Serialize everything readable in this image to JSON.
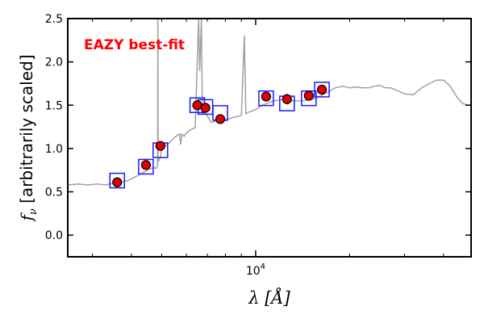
{
  "chart_data": {
    "type": "scatter",
    "title": "",
    "xlabel": "λ [Å]",
    "ylabel_symbol": "f",
    "ylabel_sub": "ν",
    "ylabel_text": " [arbitrarily scaled]",
    "xscale": "log",
    "xlim": [
      2500,
      49000
    ],
    "ylim": [
      -0.25,
      2.5
    ],
    "yticks": [
      "0.0",
      "0.5",
      "1.0",
      "1.5",
      "2.0",
      "2.5"
    ],
    "xtick_major_labels": [
      {
        "base": "10",
        "exp": "4"
      }
    ],
    "annotation": {
      "text": "EAZY best-fit",
      "color": "#ff0000"
    },
    "colors": {
      "template": "#a0a0a0",
      "model_box": "#1a1aff",
      "point_fill": "#e00000",
      "point_edge": "#000000"
    },
    "template_spectrum": [
      [
        2500,
        0.58
      ],
      [
        2700,
        0.59
      ],
      [
        2900,
        0.58
      ],
      [
        3100,
        0.59
      ],
      [
        3300,
        0.58
      ],
      [
        3500,
        0.6
      ],
      [
        3700,
        0.61
      ],
      [
        3900,
        0.63
      ],
      [
        4100,
        0.67
      ],
      [
        4300,
        0.71
      ],
      [
        4500,
        0.75
      ],
      [
        4700,
        0.78
      ],
      [
        4800,
        0.77
      ],
      [
        4850,
        0.8
      ],
      [
        4861,
        2.5
      ],
      [
        4870,
        0.85
      ],
      [
        4959,
        0.9
      ],
      [
        5007,
        1.05
      ],
      [
        5100,
        1.02
      ],
      [
        5300,
        1.07
      ],
      [
        5500,
        1.13
      ],
      [
        5700,
        1.17
      ],
      [
        5750,
        1.05
      ],
      [
        5800,
        1.17
      ],
      [
        5900,
        1.14
      ],
      [
        6000,
        1.18
      ],
      [
        6200,
        1.22
      ],
      [
        6400,
        1.24
      ],
      [
        6563,
        2.5
      ],
      [
        6620,
        1.9
      ],
      [
        6700,
        2.5
      ],
      [
        6750,
        1.4
      ],
      [
        6900,
        1.42
      ],
      [
        7200,
        1.3
      ],
      [
        7500,
        1.32
      ],
      [
        8000,
        1.33
      ],
      [
        8500,
        1.36
      ],
      [
        9000,
        1.38
      ],
      [
        9200,
        2.3
      ],
      [
        9300,
        1.4
      ],
      [
        9500,
        1.42
      ],
      [
        10000,
        1.45
      ],
      [
        10500,
        1.5
      ],
      [
        11000,
        1.53
      ],
      [
        11500,
        1.55
      ],
      [
        12000,
        1.56
      ],
      [
        12500,
        1.57
      ],
      [
        13000,
        1.55
      ],
      [
        14000,
        1.55
      ],
      [
        15000,
        1.56
      ],
      [
        16000,
        1.6
      ],
      [
        17000,
        1.65
      ],
      [
        18000,
        1.7
      ],
      [
        19000,
        1.72
      ],
      [
        20000,
        1.7
      ],
      [
        21000,
        1.71
      ],
      [
        22000,
        1.7
      ],
      [
        23000,
        1.7
      ],
      [
        24000,
        1.72
      ],
      [
        25000,
        1.73
      ],
      [
        26000,
        1.7
      ],
      [
        27000,
        1.7
      ],
      [
        28000,
        1.68
      ],
      [
        30000,
        1.63
      ],
      [
        32000,
        1.62
      ],
      [
        34000,
        1.7
      ],
      [
        36000,
        1.75
      ],
      [
        38000,
        1.79
      ],
      [
        40000,
        1.79
      ],
      [
        42000,
        1.72
      ],
      [
        44000,
        1.6
      ],
      [
        46000,
        1.52
      ],
      [
        48000,
        1.5
      ]
    ],
    "model_boxes": [
      {
        "x": 3600,
        "y": 0.63
      },
      {
        "x": 4450,
        "y": 0.79
      },
      {
        "x": 4950,
        "y": 0.98
      },
      {
        "x": 6500,
        "y": 1.5
      },
      {
        "x": 6900,
        "y": 1.48
      },
      {
        "x": 7700,
        "y": 1.41
      },
      {
        "x": 10800,
        "y": 1.58
      },
      {
        "x": 12600,
        "y": 1.52
      },
      {
        "x": 14800,
        "y": 1.58
      },
      {
        "x": 16300,
        "y": 1.68
      }
    ],
    "observed_points": [
      {
        "x": 3600,
        "y": 0.61,
        "yerr": 0.02
      },
      {
        "x": 4450,
        "y": 0.81,
        "yerr": 0.02
      },
      {
        "x": 4950,
        "y": 1.03,
        "yerr": 0.02
      },
      {
        "x": 6500,
        "y": 1.5,
        "yerr": 0.03
      },
      {
        "x": 6900,
        "y": 1.47,
        "yerr": 0.03
      },
      {
        "x": 7700,
        "y": 1.34,
        "yerr": 0.02
      },
      {
        "x": 10800,
        "y": 1.6,
        "yerr": 0.03
      },
      {
        "x": 12600,
        "y": 1.57,
        "yerr": 0.06
      },
      {
        "x": 14800,
        "y": 1.61,
        "yerr": 0.05
      },
      {
        "x": 16300,
        "y": 1.68,
        "yerr": 0.03
      }
    ]
  }
}
